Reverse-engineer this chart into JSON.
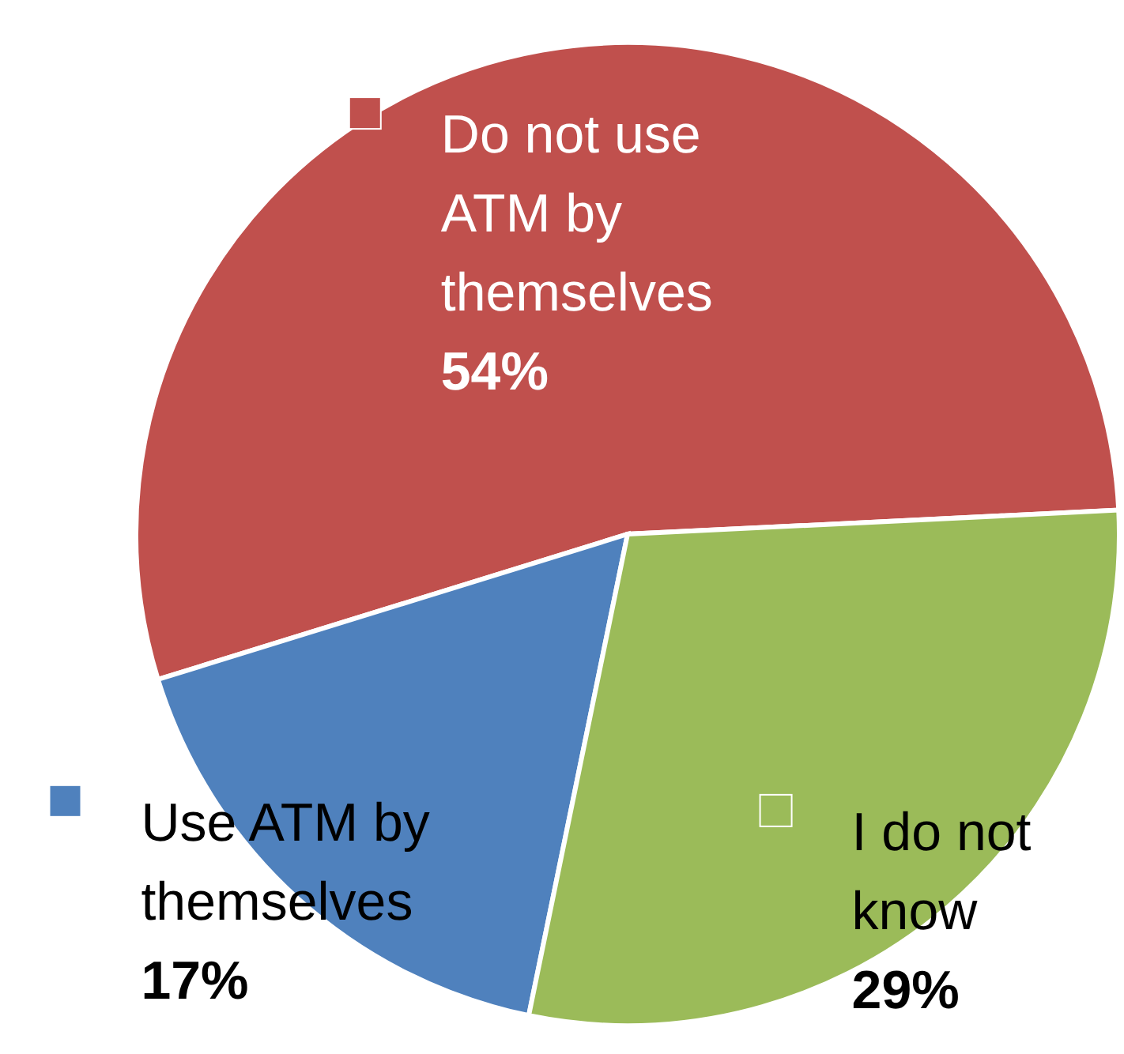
{
  "chart_data": {
    "type": "pie",
    "categories": [
      "Do not use ATM by themselves",
      "Use ATM by themselves",
      "I do not know"
    ],
    "values": [
      54,
      17,
      29
    ],
    "colors": [
      "#c0504d",
      "#4f81bd",
      "#9bbb59"
    ],
    "value_labels": [
      "54%",
      "17%",
      "29%"
    ],
    "legend": "center"
  }
}
